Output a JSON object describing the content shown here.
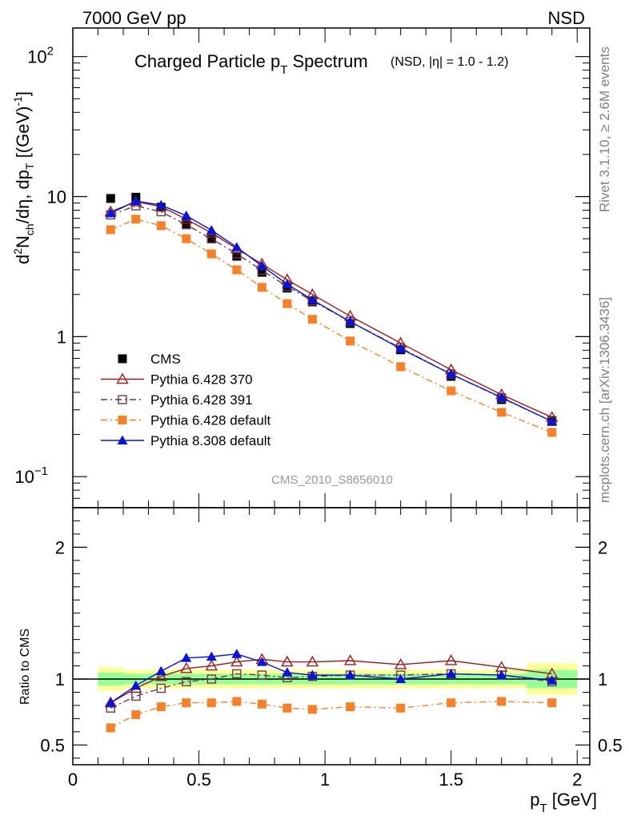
{
  "header": {
    "left": "7000 GeV pp",
    "right": "NSD"
  },
  "side_text": {
    "rivet": "Rivet 3.1.10, ≥ 2.6M events",
    "source": "mcplots.cern.ch [arXiv:1306.3436]"
  },
  "chart_data": [
    {
      "type": "line",
      "panel": "main",
      "title_main": "Charged Particle p",
      "title_sub": "T",
      "title_tail": " Spectrum",
      "title_small": "(NSD, |η| = 1.0 - 1.2)",
      "ylabel_parts": [
        "d",
        "2",
        "N",
        "ch",
        "/dη, dp",
        "T",
        " [(GeV)",
        "-1",
        "]"
      ],
      "xlabel": "",
      "yscale": "log",
      "ylim": [
        0.06,
        160
      ],
      "xlim": [
        0,
        2.05
      ],
      "yticks": [
        {
          "value": 100,
          "base": "10",
          "exp": "2"
        },
        {
          "value": 10,
          "base": "10",
          "exp": ""
        },
        {
          "value": 1,
          "base": "1",
          "exp": ""
        },
        {
          "value": 0.1,
          "base": "10",
          "exp": "−1"
        }
      ],
      "watermark": "CMS_2010_S8656010",
      "x": [
        0.15,
        0.25,
        0.35,
        0.45,
        0.55,
        0.65,
        0.75,
        0.85,
        0.95,
        1.1,
        1.3,
        1.5,
        1.7,
        1.9
      ],
      "series": [
        {
          "name": "CMS",
          "color": "#000000",
          "marker": "square-filled",
          "line": "none",
          "values": [
            9.7,
            9.9,
            8.4,
            6.4,
            5.0,
            3.75,
            2.88,
            2.22,
            1.77,
            1.24,
            0.805,
            0.52,
            0.355,
            0.252
          ]
        },
        {
          "name": "Pythia 6.428 370",
          "color": "#9b1c1c",
          "marker": "triangle-open",
          "line": "solid",
          "values": [
            7.8,
            9.2,
            8.5,
            6.9,
            5.5,
            4.25,
            3.3,
            2.55,
            2.0,
            1.4,
            0.9,
            0.58,
            0.385,
            0.265
          ]
        },
        {
          "name": "Pythia 6.428 391",
          "color": "#6b3a4a",
          "marker": "square-open",
          "line": "dashdot",
          "values": [
            7.4,
            8.6,
            7.8,
            6.3,
            5.0,
            3.9,
            2.98,
            2.28,
            1.8,
            1.28,
            0.83,
            0.54,
            0.365,
            0.248
          ]
        },
        {
          "name": "Pythia 6.428 default",
          "color": "#f5812b",
          "marker": "square-filled",
          "line": "dashdot",
          "values": [
            5.8,
            6.9,
            6.2,
            5.0,
            3.9,
            3.0,
            2.25,
            1.72,
            1.33,
            0.93,
            0.61,
            0.41,
            0.288,
            0.207
          ]
        },
        {
          "name": "Pythia 8.308 default",
          "color": "#0a14d6",
          "marker": "triangle-filled",
          "line": "solid",
          "values": [
            7.6,
            9.3,
            8.7,
            7.3,
            5.75,
            4.35,
            3.2,
            2.37,
            1.83,
            1.28,
            0.82,
            0.54,
            0.368,
            0.248
          ]
        }
      ]
    },
    {
      "type": "line",
      "panel": "ratio",
      "ylabel": "Ratio to CMS",
      "xlabel_main": "p",
      "xlabel_sub": "T",
      "xlabel_unit": " [GeV]",
      "ylim": [
        0.35,
        2.3
      ],
      "xlim": [
        0,
        2.05
      ],
      "yticks": [
        0.5,
        1,
        2
      ],
      "xticks": [
        0,
        0.5,
        1,
        1.5,
        2
      ],
      "ytick_labels": [
        "0.5",
        "1",
        "2"
      ],
      "xtick_labels": [
        "0",
        "0.5",
        "1",
        "1.5",
        "2"
      ],
      "band_edges": [
        0.1,
        0.2,
        0.3,
        0.4,
        0.5,
        0.6,
        0.7,
        0.8,
        0.9,
        1.0,
        1.2,
        1.4,
        1.6,
        1.8,
        2.0
      ],
      "band_yellow_halfwidth": [
        0.09,
        0.07,
        0.07,
        0.07,
        0.07,
        0.07,
        0.07,
        0.07,
        0.07,
        0.07,
        0.07,
        0.07,
        0.07,
        0.12
      ],
      "band_green_halfwidth": [
        0.05,
        0.04,
        0.04,
        0.04,
        0.04,
        0.04,
        0.04,
        0.04,
        0.04,
        0.04,
        0.04,
        0.04,
        0.04,
        0.07
      ],
      "band_colors": {
        "yellow": "#ffff99",
        "green": "#99ff99"
      },
      "series": [
        {
          "name": "Pythia 6.428 370",
          "color": "#9b1c1c",
          "marker": "triangle-open",
          "line": "solid",
          "values": [
            0.82,
            0.93,
            1.02,
            1.08,
            1.1,
            1.13,
            1.15,
            1.13,
            1.13,
            1.14,
            1.11,
            1.14,
            1.09,
            1.04
          ]
        },
        {
          "name": "Pythia 6.428 391",
          "color": "#6b3a4a",
          "marker": "square-open",
          "line": "dashdot",
          "values": [
            0.78,
            0.87,
            0.93,
            0.98,
            1.0,
            1.04,
            1.03,
            1.01,
            1.02,
            1.03,
            1.03,
            1.04,
            1.03,
            0.98
          ]
        },
        {
          "name": "Pythia 6.428 default",
          "color": "#f5812b",
          "marker": "square-filled",
          "line": "dashdot",
          "values": [
            0.63,
            0.73,
            0.79,
            0.82,
            0.82,
            0.83,
            0.81,
            0.78,
            0.77,
            0.79,
            0.78,
            0.82,
            0.83,
            0.82
          ]
        },
        {
          "name": "Pythia 8.308 default",
          "color": "#0a14d6",
          "marker": "triangle-filled",
          "line": "solid",
          "values": [
            0.82,
            0.95,
            1.06,
            1.16,
            1.17,
            1.19,
            1.13,
            1.05,
            1.03,
            1.03,
            1.0,
            1.04,
            1.03,
            0.99
          ]
        }
      ]
    }
  ]
}
